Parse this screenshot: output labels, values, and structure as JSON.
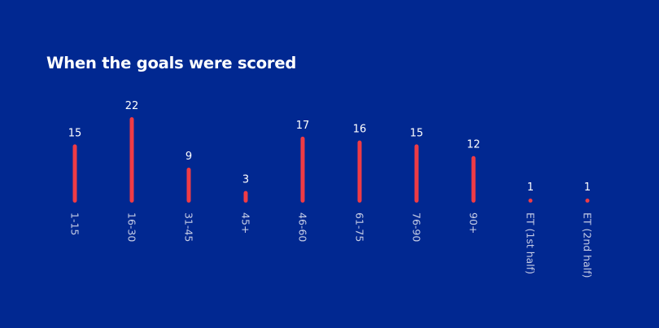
{
  "title": "When the goals were scored",
  "colors": {
    "background": "#012891",
    "bar": "#ef3b45",
    "title": "#ffffff",
    "value_label": "#ffffff",
    "tick_label": "#c6cde6"
  },
  "chart_data": {
    "type": "bar",
    "title": "When the goals were scored",
    "xlabel": "",
    "ylabel": "",
    "categories": [
      "1-15",
      "16-30",
      "31-45",
      "45+",
      "46-60",
      "61-75",
      "76-90",
      "90+",
      "ET (1st half)",
      "ET (2nd half)"
    ],
    "values": [
      15,
      22,
      9,
      3,
      17,
      16,
      15,
      12,
      1,
      1
    ],
    "ylim": [
      0,
      22
    ],
    "grid": false,
    "legend": "none",
    "orientation": "vertical",
    "tick_label_rotation": "rotated 90° clockwise",
    "data_labels": true
  }
}
